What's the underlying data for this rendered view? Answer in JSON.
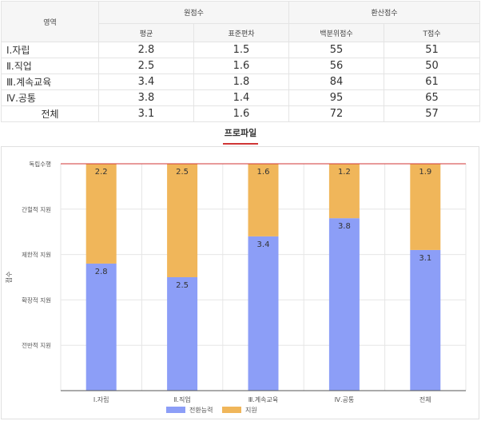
{
  "table": {
    "header_area": "영역",
    "group_raw": "원점수",
    "group_converted": "환산점수",
    "col_mean": "평균",
    "col_sd": "표준편차",
    "col_percentile": "백분위점수",
    "col_t": "T점수",
    "rows": [
      {
        "area": "Ⅰ.자립",
        "mean": "2.8",
        "sd": "1.5",
        "percentile": "55",
        "t": "51"
      },
      {
        "area": "Ⅱ.직업",
        "mean": "2.5",
        "sd": "1.6",
        "percentile": "56",
        "t": "50"
      },
      {
        "area": "Ⅲ.계속교육",
        "mean": "3.4",
        "sd": "1.8",
        "percentile": "84",
        "t": "61"
      },
      {
        "area": "Ⅳ.공통",
        "mean": "3.8",
        "sd": "1.4",
        "percentile": "95",
        "t": "65"
      },
      {
        "area": "전체",
        "mean": "3.1",
        "sd": "1.6",
        "percentile": "72",
        "t": "57"
      }
    ]
  },
  "profile_title": "프로파일",
  "chart_data": {
    "type": "bar",
    "stacked": true,
    "categories": [
      "Ⅰ.자립",
      "Ⅱ.직업",
      "Ⅲ.계속교육",
      "Ⅳ.공통",
      "전체"
    ],
    "series": [
      {
        "name": "전환능력",
        "values": [
          2.8,
          2.5,
          3.4,
          3.8,
          3.1
        ],
        "color": "#8c9ef7"
      },
      {
        "name": "지원",
        "values": [
          2.2,
          2.5,
          1.6,
          1.2,
          1.9
        ],
        "color": "#f0b65a"
      }
    ],
    "ylabel": "점수",
    "ylim": [
      0,
      5
    ],
    "y_ticks": [
      {
        "value": 1,
        "label": "전반적 지원"
      },
      {
        "value": 2,
        "label": "확장적 지원"
      },
      {
        "value": 3,
        "label": "제한적 지원"
      },
      {
        "value": 4,
        "label": "간헐적 지원"
      },
      {
        "value": 5,
        "label": "독립수행"
      }
    ],
    "grid": true,
    "legend": "bottom",
    "gridline_color": "#e6e6e6",
    "axis_color": "#555555",
    "top_line_color": "#d03636"
  }
}
